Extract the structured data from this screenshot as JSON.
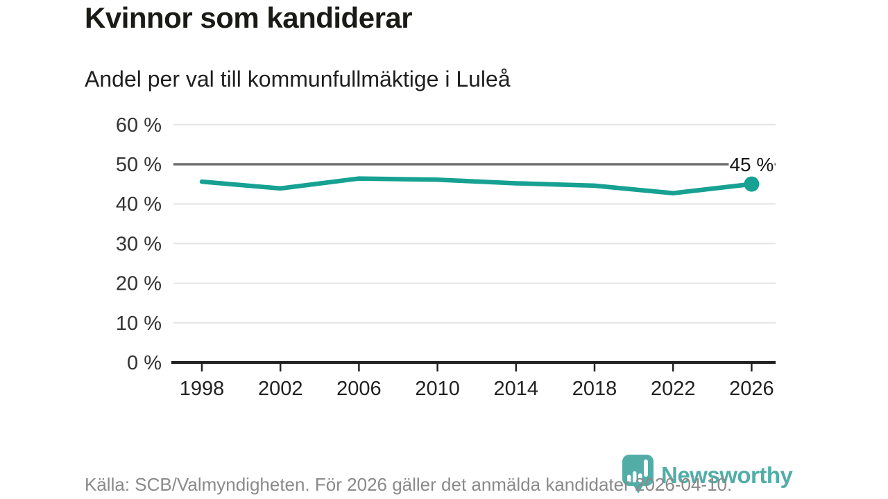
{
  "header": {
    "title": "Kvinnor som kandiderar",
    "subtitle": "Andel per val till kommunfullmäktige i Luleå"
  },
  "chart_data": {
    "type": "line",
    "title": "Kvinnor som kandiderar",
    "subtitle": "Andel per val till kommunfullmäktige i Luleå",
    "categories": [
      "1998",
      "2002",
      "2006",
      "2010",
      "2014",
      "2018",
      "2022",
      "2026"
    ],
    "values": [
      45.6,
      43.9,
      46.4,
      46.1,
      45.2,
      44.6,
      42.7,
      45.0
    ],
    "unit": "%",
    "ylim": [
      0,
      60
    ],
    "yticks": [
      0,
      10,
      20,
      30,
      40,
      50,
      60
    ],
    "ytick_suffix": " %",
    "reference_line": 50,
    "last_point_label": "45 %",
    "grid": "horizontal",
    "legend": "none",
    "line_color": "#16a193",
    "point_color": "#16a193",
    "gridline_color": "#e4e4e4",
    "reference_line_color": "#6e6e6e",
    "axis_color": "#222222"
  },
  "footer": {
    "source": "Källa: SCB/Valmyndigheten. För 2026 gäller det anmälda kandidater 2026-04-10.",
    "logo_text": "Newsworthy"
  }
}
